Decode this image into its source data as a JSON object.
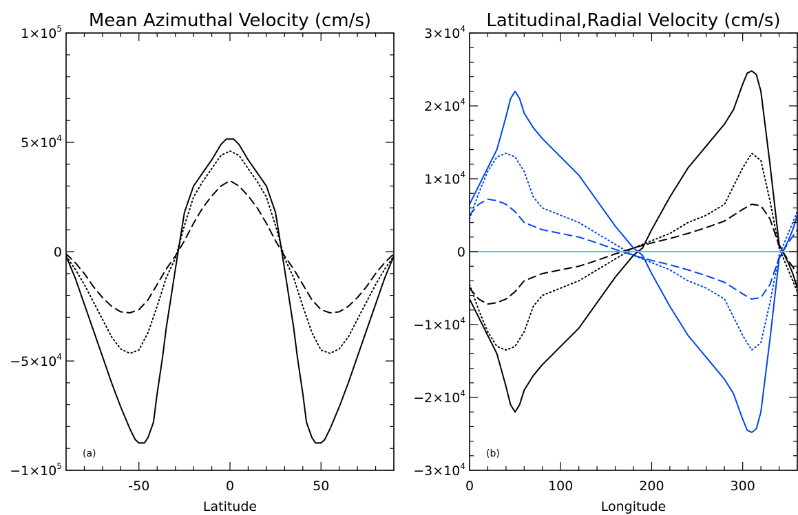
{
  "chart_data": [
    {
      "type": "line",
      "panel_label": "(a)",
      "title": "Mean Azimuthal Velocity (cm/s)",
      "xlabel": "Latitude",
      "ylabel": "",
      "xlim": [
        -90,
        90
      ],
      "ylim": [
        -100000,
        100000
      ],
      "xticks": [
        -50,
        0,
        50
      ],
      "yticks": [
        {
          "value": 100000,
          "label": "1×10",
          "exp": "5"
        },
        {
          "value": 50000,
          "label": "5×10",
          "exp": "4"
        },
        {
          "value": 0,
          "label": "0",
          "exp": ""
        },
        {
          "value": -50000,
          "label": "−5×10",
          "exp": "4"
        },
        {
          "value": -100000,
          "label": "−1×10",
          "exp": "5"
        }
      ],
      "grid": false,
      "series": [
        {
          "color": "#000000",
          "dash": "solid",
          "x": [
            -90,
            -85,
            -80,
            -75,
            -70,
            -65,
            -60,
            -55,
            -52,
            -50,
            -47,
            -45,
            -42,
            -40,
            -37,
            -35,
            -30,
            -25,
            -20,
            -15,
            -10,
            -5,
            -2,
            0,
            2,
            5,
            10,
            15,
            20,
            25,
            30,
            35,
            37,
            40,
            42,
            45,
            47,
            50,
            52,
            55,
            60,
            65,
            70,
            75,
            80,
            85,
            90
          ],
          "y": [
            -2000,
            -12000,
            -24000,
            -36000,
            -48000,
            -60000,
            -71000,
            -81000,
            -86000,
            -87500,
            -87500,
            -85000,
            -78000,
            -65000,
            -48000,
            -35000,
            -8000,
            18000,
            30000,
            36000,
            42000,
            49000,
            51500,
            51500,
            51500,
            49000,
            42000,
            36000,
            30000,
            18000,
            -8000,
            -35000,
            -48000,
            -65000,
            -78000,
            -85000,
            -87500,
            -87500,
            -86000,
            -81000,
            -71000,
            -60000,
            -48000,
            -36000,
            -24000,
            -12000,
            -2000
          ]
        },
        {
          "color": "#000000",
          "dash": "dotted",
          "x": [
            -90,
            -85,
            -80,
            -75,
            -70,
            -65,
            -60,
            -55,
            -50,
            -45,
            -40,
            -35,
            -30,
            -25,
            -20,
            -15,
            -10,
            -5,
            0,
            5,
            10,
            15,
            20,
            25,
            30,
            35,
            40,
            45,
            50,
            55,
            60,
            65,
            70,
            75,
            80,
            85,
            90
          ],
          "y": [
            -2000,
            -8000,
            -15000,
            -23000,
            -31000,
            -39000,
            -44500,
            -46500,
            -45000,
            -37000,
            -25000,
            -12000,
            -3000,
            12000,
            25000,
            32000,
            38000,
            44000,
            46000,
            44000,
            38000,
            32000,
            25000,
            12000,
            -3000,
            -12000,
            -25000,
            -37000,
            -45000,
            -46500,
            -44500,
            -39000,
            -31000,
            -23000,
            -15000,
            -8000,
            -2000
          ]
        },
        {
          "color": "#000000",
          "dash": "dashed",
          "x": [
            -90,
            -85,
            -80,
            -75,
            -70,
            -65,
            -60,
            -55,
            -50,
            -45,
            -40,
            -35,
            -30,
            -25,
            -20,
            -15,
            -10,
            -5,
            0,
            5,
            10,
            15,
            20,
            25,
            30,
            35,
            40,
            45,
            50,
            55,
            60,
            65,
            70,
            75,
            80,
            85,
            90
          ],
          "y": [
            -1000,
            -5000,
            -10000,
            -16000,
            -21000,
            -25000,
            -27500,
            -28000,
            -26500,
            -22000,
            -15000,
            -8000,
            -2000,
            5000,
            13000,
            20000,
            25500,
            30000,
            32500,
            30000,
            25500,
            20000,
            13000,
            5000,
            -2000,
            -8000,
            -15000,
            -22000,
            -26500,
            -28000,
            -27500,
            -25000,
            -21000,
            -16000,
            -10000,
            -5000,
            -1000
          ]
        }
      ]
    },
    {
      "type": "line",
      "panel_label": "(b)",
      "title": "Latitudinal,Radial Velocity (cm/s)",
      "xlabel": "Longitude",
      "ylabel": "",
      "xlim": [
        0,
        360
      ],
      "ylim": [
        -30000,
        30000
      ],
      "xticks": [
        0,
        100,
        200,
        300
      ],
      "yticks": [
        {
          "value": 30000,
          "label": "3×10",
          "exp": "4"
        },
        {
          "value": 20000,
          "label": "2×10",
          "exp": "4"
        },
        {
          "value": 10000,
          "label": "1×10",
          "exp": "4"
        },
        {
          "value": 0,
          "label": "0",
          "exp": ""
        },
        {
          "value": -10000,
          "label": "−1×10",
          "exp": "4"
        },
        {
          "value": -20000,
          "label": "−2×10",
          "exp": "4"
        },
        {
          "value": -30000,
          "label": "−3×10",
          "exp": "4"
        }
      ],
      "grid": false,
      "series": [
        {
          "color": "#000000",
          "dash": "solid",
          "x": [
            0,
            10,
            20,
            30,
            40,
            45,
            50,
            55,
            60,
            70,
            80,
            100,
            120,
            140,
            160,
            180,
            190,
            200,
            220,
            240,
            260,
            280,
            290,
            300,
            305,
            310,
            315,
            320,
            330,
            340,
            350,
            355,
            360
          ],
          "y": [
            -6500,
            -9000,
            -11500,
            -14000,
            -18500,
            -21000,
            -22000,
            -21000,
            -19000,
            -17000,
            -15500,
            -13000,
            -10500,
            -7000,
            -3500,
            -500,
            500,
            3000,
            7500,
            11500,
            14500,
            17500,
            19500,
            23000,
            24500,
            24800,
            24300,
            22000,
            12000,
            1000,
            -1500,
            -3000,
            -5000
          ]
        },
        {
          "color": "#0044ee",
          "dash": "solid",
          "x": [
            0,
            10,
            20,
            30,
            40,
            45,
            50,
            55,
            60,
            70,
            80,
            100,
            120,
            140,
            160,
            180,
            190,
            200,
            220,
            240,
            260,
            280,
            290,
            300,
            305,
            310,
            315,
            320,
            330,
            340,
            350,
            355,
            360
          ],
          "y": [
            6500,
            9000,
            11500,
            14000,
            18500,
            21000,
            22000,
            21000,
            19000,
            17000,
            15500,
            13000,
            10500,
            7000,
            3500,
            500,
            -500,
            -3000,
            -7500,
            -11500,
            -14500,
            -17500,
            -19500,
            -23000,
            -24500,
            -24800,
            -24300,
            -22000,
            -12000,
            -1000,
            1500,
            3000,
            5000
          ]
        },
        {
          "color": "#000000",
          "dash": "dotted",
          "x": [
            0,
            10,
            20,
            30,
            40,
            50,
            60,
            70,
            80,
            100,
            120,
            140,
            160,
            180,
            200,
            220,
            240,
            260,
            280,
            300,
            310,
            320,
            330,
            340,
            350,
            360
          ],
          "y": [
            -4500,
            -8000,
            -11000,
            -13000,
            -13500,
            -13000,
            -11000,
            -7500,
            -6000,
            -5000,
            -4000,
            -2500,
            -1000,
            500,
            1500,
            2500,
            4000,
            5000,
            6500,
            11500,
            13500,
            12500,
            7000,
            500,
            -2500,
            -5500
          ]
        },
        {
          "color": "#0044ee",
          "dash": "dotted",
          "x": [
            0,
            10,
            20,
            30,
            40,
            50,
            60,
            70,
            80,
            100,
            120,
            140,
            160,
            180,
            200,
            220,
            240,
            260,
            280,
            300,
            310,
            320,
            330,
            340,
            350,
            360
          ],
          "y": [
            4500,
            8000,
            11000,
            13000,
            13500,
            13000,
            11000,
            7500,
            6000,
            5000,
            4000,
            2500,
            1000,
            -500,
            -1500,
            -2500,
            -4000,
            -5000,
            -6500,
            -11500,
            -13500,
            -12500,
            -7000,
            -500,
            2500,
            5500
          ]
        },
        {
          "color": "#000000",
          "dash": "dashed",
          "x": [
            0,
            10,
            20,
            30,
            40,
            50,
            60,
            80,
            100,
            120,
            140,
            160,
            180,
            200,
            220,
            240,
            260,
            280,
            300,
            310,
            320,
            330,
            340,
            350,
            360
          ],
          "y": [
            -5000,
            -6500,
            -7200,
            -7000,
            -6500,
            -5500,
            -4000,
            -3000,
            -2500,
            -2000,
            -1200,
            -300,
            500,
            1200,
            1800,
            2500,
            3300,
            4200,
            5800,
            6500,
            6300,
            4500,
            800,
            -1200,
            -3000
          ]
        },
        {
          "color": "#0044ee",
          "dash": "dashed",
          "x": [
            0,
            10,
            20,
            30,
            40,
            50,
            60,
            80,
            100,
            120,
            140,
            160,
            180,
            200,
            220,
            240,
            260,
            280,
            300,
            310,
            320,
            330,
            340,
            350,
            360
          ],
          "y": [
            5000,
            6500,
            7200,
            7000,
            6500,
            5500,
            4000,
            3000,
            2500,
            2000,
            1200,
            300,
            -500,
            -1200,
            -1800,
            -2500,
            -3300,
            -4200,
            -5800,
            -6500,
            -6300,
            -4500,
            -800,
            1200,
            3000
          ]
        },
        {
          "color": "#22dddd",
          "dash": "solid",
          "x": [
            0,
            360
          ],
          "y": [
            0,
            0
          ]
        }
      ]
    }
  ]
}
